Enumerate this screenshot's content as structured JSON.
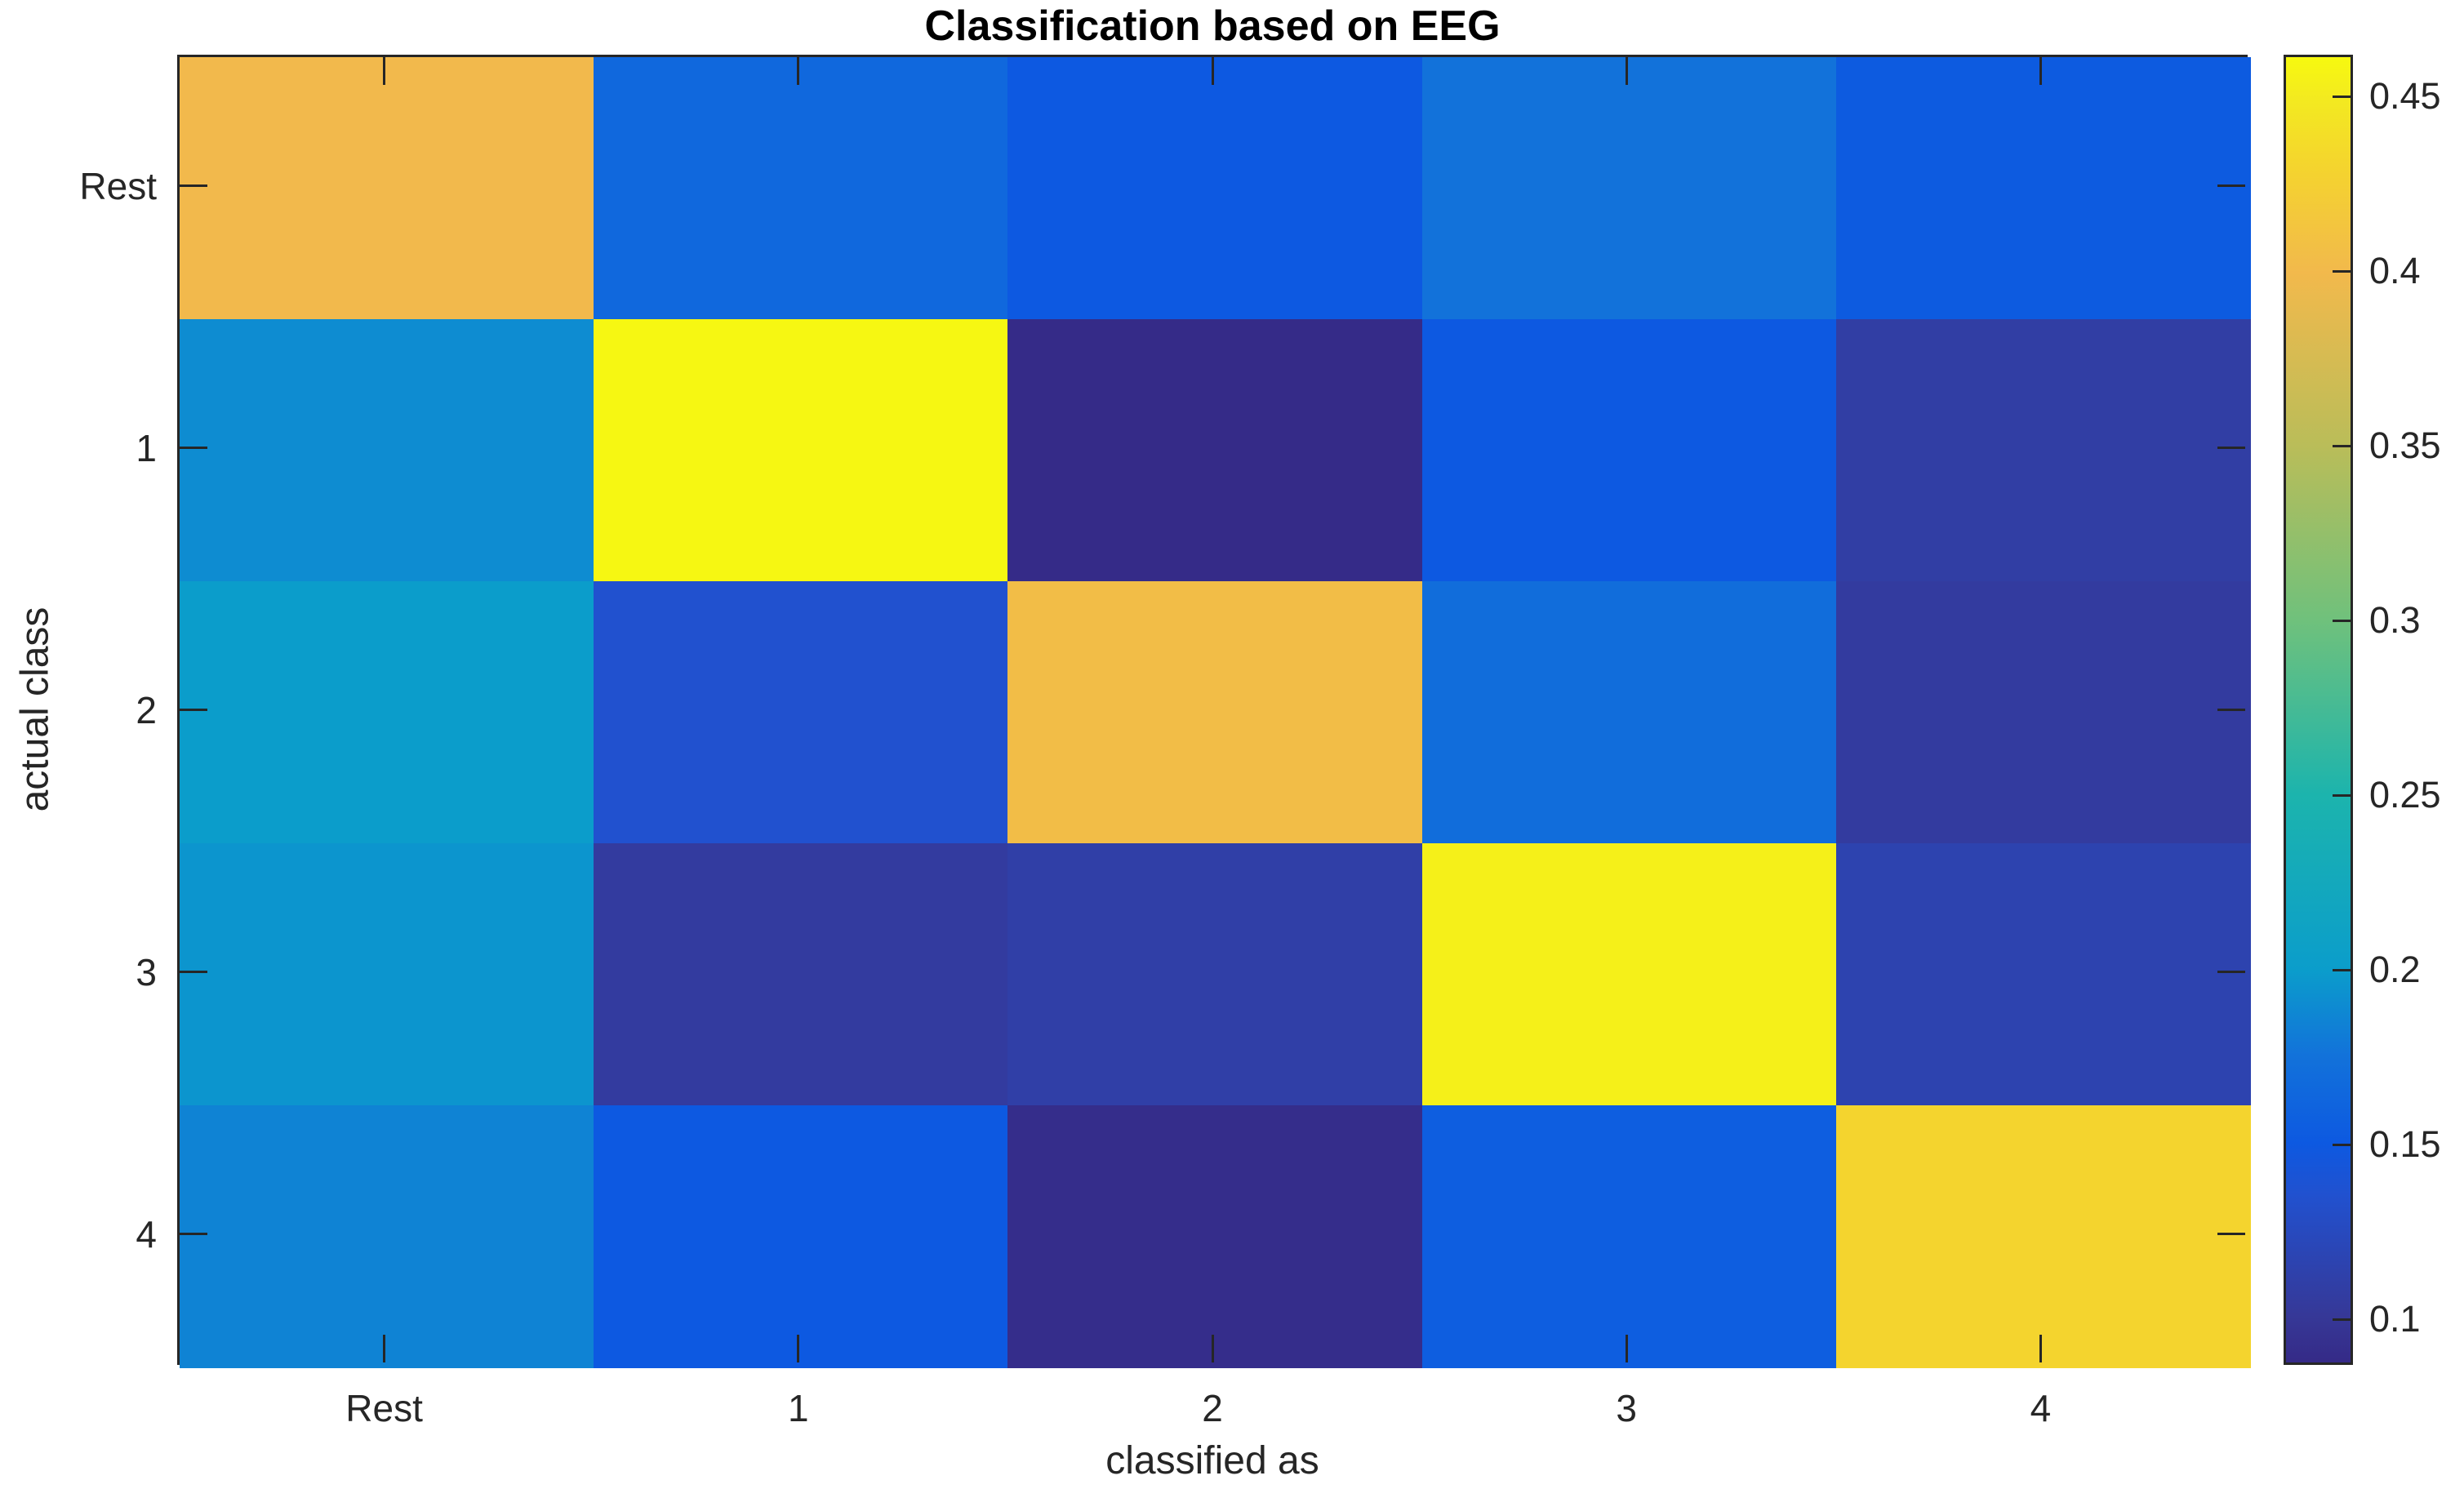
{
  "figure": {
    "background": "#ffffff",
    "axis_color": "#262626",
    "title_color": "#000000"
  },
  "chart_data": {
    "type": "heatmap",
    "title": "Classification based on EEG",
    "xlabel": "classified as",
    "ylabel": "actual class",
    "x_tick_labels": [
      "Rest",
      "1",
      "2",
      "3",
      "4"
    ],
    "y_tick_labels": [
      "Rest",
      "1",
      "2",
      "3",
      "4"
    ],
    "matrix": [
      [
        0.4,
        0.165,
        0.15,
        0.175,
        0.152
      ],
      [
        0.19,
        0.46,
        0.088,
        0.15,
        0.108
      ],
      [
        0.2,
        0.135,
        0.405,
        0.17,
        0.105
      ],
      [
        0.195,
        0.105,
        0.11,
        0.455,
        0.115
      ],
      [
        0.185,
        0.15,
        0.09,
        0.155,
        0.43
      ]
    ],
    "vmin": 0.087,
    "vmax": 0.462,
    "colorbar_ticks": [
      0.1,
      0.15,
      0.2,
      0.25,
      0.3,
      0.35,
      0.4,
      0.45
    ],
    "colorbar_tick_labels": [
      "0.1",
      "0.15",
      "0.2",
      "0.25",
      "0.3",
      "0.35",
      "0.4",
      "0.45"
    ],
    "colormap_name": "parula",
    "colormap_stops": [
      {
        "t": 0.0,
        "color": "#352a87"
      },
      {
        "t": 0.035,
        "color": "#363897"
      },
      {
        "t": 0.128,
        "color": "#2151cf"
      },
      {
        "t": 0.168,
        "color": "#0d59e1"
      },
      {
        "t": 0.235,
        "color": "#1272da"
      },
      {
        "t": 0.301,
        "color": "#0b9dcb"
      },
      {
        "t": 0.435,
        "color": "#1cb4ad"
      },
      {
        "t": 0.568,
        "color": "#6fc17c"
      },
      {
        "t": 0.701,
        "color": "#b9bd59"
      },
      {
        "t": 0.835,
        "color": "#f2b94c"
      },
      {
        "t": 0.915,
        "color": "#f4d42e"
      },
      {
        "t": 0.968,
        "color": "#f3ea20"
      },
      {
        "t": 1.0,
        "color": "#f7f90f"
      }
    ],
    "grid": false,
    "legend": false,
    "colorbar_position": "right"
  }
}
